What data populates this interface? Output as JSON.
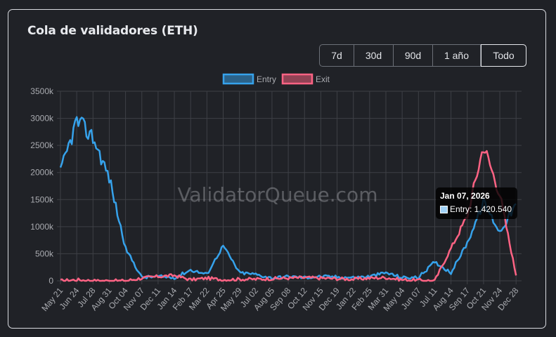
{
  "card": {
    "title": "Cola de validadores (ETH)",
    "range_buttons": [
      {
        "label": "7d",
        "active": false
      },
      {
        "label": "30d",
        "active": false
      },
      {
        "label": "90d",
        "active": false
      },
      {
        "label": "1 año",
        "active": false
      },
      {
        "label": "Todo",
        "active": true
      }
    ],
    "watermark": "ValidatorQueue.com"
  },
  "tooltip": {
    "date": "Jan 07, 2026",
    "label": "Entry: 1.420.540"
  },
  "colors": {
    "entry": "#36a2eb",
    "exit": "#ff6384",
    "grid": "#3e4046",
    "tick_text": "#a9abb0"
  },
  "chart_data": {
    "type": "line",
    "title": "Cola de validadores (ETH)",
    "xlabel": "",
    "ylabel": "",
    "ylim": [
      0,
      3500000
    ],
    "y_ticks": [
      "0",
      "500k",
      "1000k",
      "1500k",
      "2000k",
      "2500k",
      "3000k",
      "3500k"
    ],
    "grid": true,
    "legend_position": "top",
    "categories": [
      "May 21",
      "Jun 24",
      "Jul 28",
      "Aug 31",
      "Oct 04",
      "Nov 07",
      "Dec 11",
      "Jan 14",
      "Feb 17",
      "Mar 22",
      "Apr 25",
      "May 29",
      "Jul 02",
      "Aug 05",
      "Sep 08",
      "Oct 12",
      "Nov 15",
      "Dec 19",
      "Jan 22",
      "Feb 25",
      "Mar 31",
      "May 04",
      "Jun 07",
      "Jul 11",
      "Aug 14",
      "Sep 17",
      "Oct 21",
      "Nov 24",
      "Dec 28"
    ],
    "series": [
      {
        "name": "Entry",
        "values": [
          2000000,
          2950000,
          2650000,
          1900000,
          600000,
          60000,
          80000,
          60000,
          200000,
          120000,
          650000,
          150000,
          120000,
          50000,
          80000,
          60000,
          80000,
          70000,
          60000,
          80000,
          150000,
          60000,
          60000,
          350000,
          150000,
          700000,
          1450000,
          900000,
          1420540
        ]
      },
      {
        "name": "Exit",
        "values": [
          0,
          20000,
          0,
          0,
          0,
          50000,
          80000,
          100000,
          20000,
          50000,
          20000,
          30000,
          30000,
          40000,
          50000,
          60000,
          50000,
          40000,
          30000,
          50000,
          60000,
          20000,
          10000,
          0,
          600000,
          1200000,
          2500000,
          1600000,
          100000
        ]
      }
    ],
    "tooltip": {
      "x": "Jan 07, 2026",
      "series": "Entry",
      "value": 1420540
    }
  }
}
